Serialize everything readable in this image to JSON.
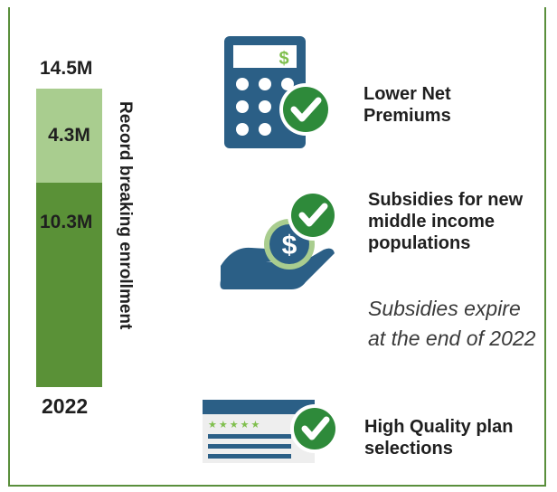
{
  "chart_data": {
    "type": "bar",
    "categories": [
      "2022"
    ],
    "series": [
      {
        "values": [
          10.3
        ]
      },
      {
        "values": [
          4.3
        ]
      }
    ],
    "totals": [
      14.5
    ],
    "data_labels": {
      "total": "14.5M",
      "bottom": "10.3M",
      "top": "4.3M"
    },
    "ylabel": "Record breaking enrollment",
    "colors": {
      "bottom": "#5a9137",
      "top": "#a9cd8f"
    },
    "ylim": [
      0,
      14.5
    ]
  },
  "benefits": [
    {
      "title": "Lower Net Premiums",
      "icon": "calculator-check-icon"
    },
    {
      "title": "Subsidies for new middle income populations",
      "icon": "hand-coin-check-icon",
      "note": "Subsidies expire at the end of 2022"
    },
    {
      "title": "High Quality plan selections",
      "icon": "rated-plan-card-check-icon"
    }
  ],
  "colors": {
    "brand_green": "#5a9137",
    "icon_blue": "#2b5f86",
    "check_green": "#2e8a3a",
    "frame_border": "#5a8f3c"
  }
}
